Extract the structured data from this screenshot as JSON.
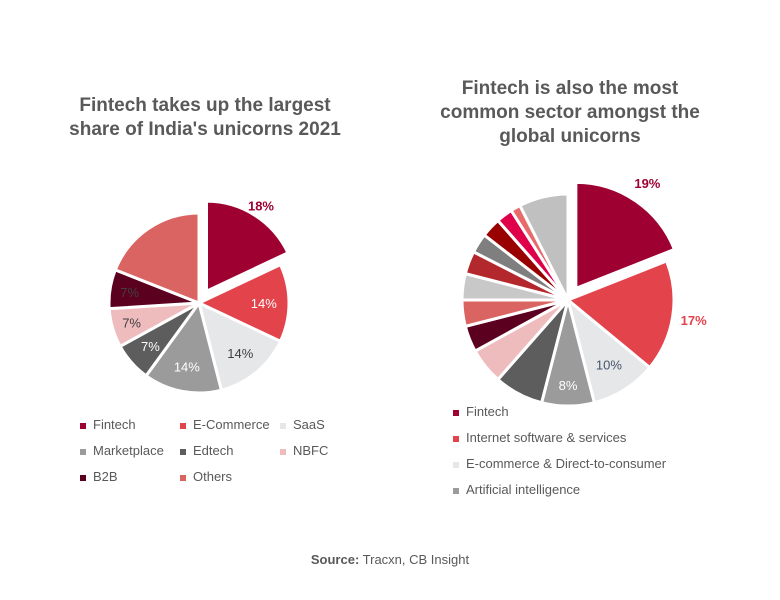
{
  "chart_data": [
    {
      "type": "pie",
      "title": "Fintech takes up the largest share of India's unicorns 2021",
      "slices": [
        {
          "label": "Fintech",
          "value": 18,
          "color": "#9e0032",
          "data_label": "18%",
          "exploded": true,
          "label_color": "#9e0032"
        },
        {
          "label": "E-Commerce",
          "value": 14,
          "color": "#e3434b",
          "data_label": "14%",
          "label_color": "#ffffff"
        },
        {
          "label": "SaaS",
          "value": 14,
          "color": "#e6e7e9",
          "data_label": "14%",
          "label_color": "#404040"
        },
        {
          "label": "Marketplace",
          "value": 14,
          "color": "#9b9b9b",
          "data_label": "14%",
          "label_color": "#ffffff"
        },
        {
          "label": "Edtech",
          "value": 7,
          "color": "#5d5d5d",
          "data_label": "7%",
          "label_color": "#ffffff"
        },
        {
          "label": "NBFC",
          "value": 7,
          "color": "#efbcbe",
          "data_label": "7%",
          "label_color": "#404040"
        },
        {
          "label": "B2B",
          "value": 7,
          "color": "#5c0020",
          "data_label": "7%",
          "label_color": "#404040"
        },
        {
          "label": "Others",
          "value": 19,
          "color": "#d96462",
          "data_label": ""
        }
      ]
    },
    {
      "type": "pie",
      "title": "Fintech is also the most common sector amongst the global unicorns",
      "slices": [
        {
          "label": "Fintech",
          "value": 19,
          "color": "#9e0032",
          "data_label": "19%",
          "exploded": true,
          "label_color": "#9e0032"
        },
        {
          "label": "Internet software & services",
          "value": 17,
          "color": "#e3434b",
          "data_label": "17%",
          "label_color": "#e3434b"
        },
        {
          "label": "E-commerce & Direct-to-consumer",
          "value": 10,
          "color": "#e6e7e9",
          "data_label": "10%",
          "label_color": "#44546a"
        },
        {
          "label": "Artificial intelligence",
          "value": 8,
          "color": "#9b9b9b",
          "data_label": "8%",
          "label_color": "#ffffff"
        },
        {
          "label": "",
          "value": 7.5,
          "color": "#5d5d5d"
        },
        {
          "label": "",
          "value": 5.5,
          "color": "#efbcbe"
        },
        {
          "label": "",
          "value": 4,
          "color": "#5c0020"
        },
        {
          "label": "",
          "value": 4,
          "color": "#d96462"
        },
        {
          "label": "",
          "value": 4,
          "color": "#c8c8c8"
        },
        {
          "label": "",
          "value": 3.5,
          "color": "#b3282d"
        },
        {
          "label": "",
          "value": 3,
          "color": "#7f7f7f"
        },
        {
          "label": "",
          "value": 3,
          "color": "#990000"
        },
        {
          "label": "",
          "value": 2.5,
          "color": "#e0004a"
        },
        {
          "label": "",
          "value": 1.5,
          "color": "#e86a6a"
        },
        {
          "label": "",
          "value": 7.5,
          "color": "#c0c0c0"
        }
      ]
    }
  ],
  "legend_left": [
    "Fintech",
    "E-Commerce",
    "SaaS",
    "Marketplace",
    "Edtech",
    "NBFC",
    "B2B",
    "Others"
  ],
  "legend_right": [
    "Fintech",
    "Internet software & services",
    "E-commerce & Direct-to-consumer",
    "Artificial intelligence"
  ],
  "source": {
    "label": "Source:",
    "text": " Tracxn, CB Insight"
  }
}
